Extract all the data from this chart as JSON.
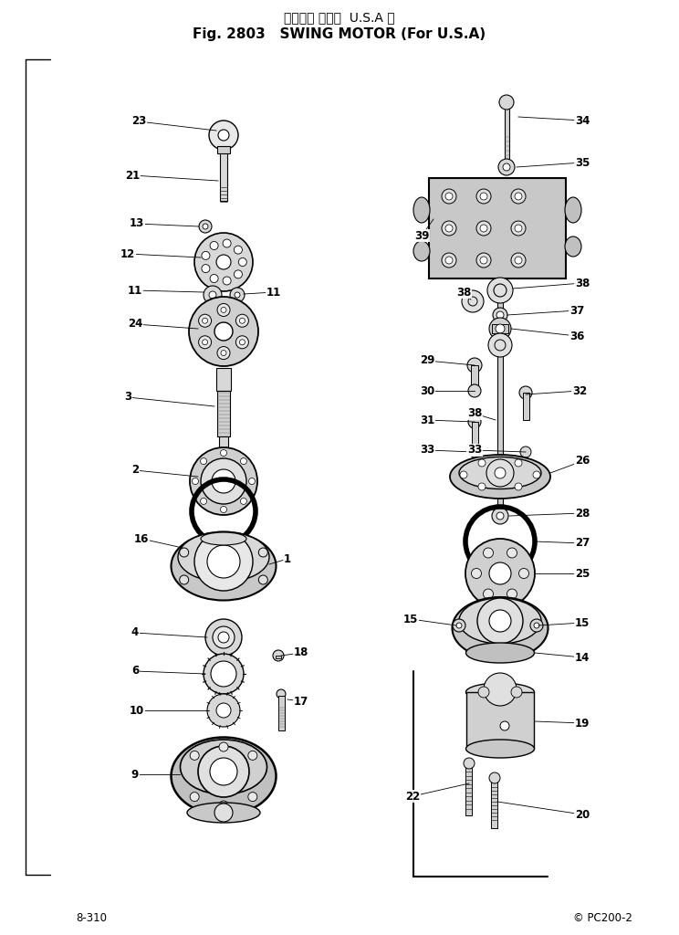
{
  "title_jp": "スイング モータ  U.S.A 向",
  "title_en": "Fig. 2803   SWING MOTOR (For U.S.A)",
  "footer_left": "8-310",
  "footer_right": "© PC200-2",
  "bg_color": "#ffffff",
  "fg_color": "#000000",
  "fig_width": 7.44,
  "fig_height": 10.24
}
